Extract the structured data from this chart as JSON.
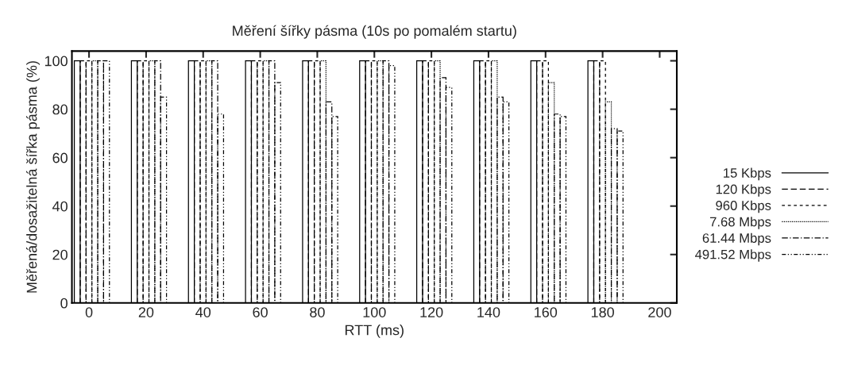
{
  "chart_data": {
    "type": "bar",
    "title": "Měření šířky pásma (10s po pomalém startu)",
    "xlabel": "RTT (ms)",
    "ylabel": "Měřená/dosažitelná šířka pásma (%)",
    "x": [
      0,
      20,
      40,
      60,
      80,
      100,
      120,
      140,
      160,
      180
    ],
    "series": [
      {
        "name": "15 Kbps",
        "color": "#000000",
        "line_style": "solid",
        "values": [
          100,
          100,
          100,
          100,
          100,
          100,
          100,
          100,
          100,
          100
        ]
      },
      {
        "name": "120 Kbps",
        "color": "#000000",
        "line_style": "dashed",
        "values": [
          100,
          100,
          100,
          100,
          100,
          100,
          100,
          100,
          100,
          100
        ]
      },
      {
        "name": "960 Kbps",
        "color": "#000000",
        "line_style": "shortdash",
        "values": [
          100,
          100,
          100,
          100,
          100,
          100,
          100,
          100,
          100,
          100
        ]
      },
      {
        "name": "7.68 Mbps",
        "color": "#000000",
        "line_style": "dotted",
        "values": [
          100,
          100,
          100,
          100,
          100,
          100,
          100,
          100,
          91,
          83
        ]
      },
      {
        "name": "61.44 Mbps",
        "color": "#000000",
        "line_style": "dashdot",
        "values": [
          100,
          100,
          100,
          100,
          83,
          100,
          93,
          85,
          78,
          72
        ]
      },
      {
        "name": "491.52 Mbps",
        "color": "#000000",
        "line_style": "dashdotdot",
        "values": [
          100,
          85,
          78,
          91,
          77,
          98,
          89,
          83,
          77,
          71
        ]
      }
    ],
    "xlim": [
      -6,
      206
    ],
    "ylim": [
      0,
      104
    ],
    "xticks": [
      0,
      20,
      40,
      60,
      80,
      100,
      120,
      140,
      160,
      180,
      200
    ],
    "yticks": [
      0,
      20,
      40,
      60,
      80,
      100
    ],
    "legend": "right"
  }
}
